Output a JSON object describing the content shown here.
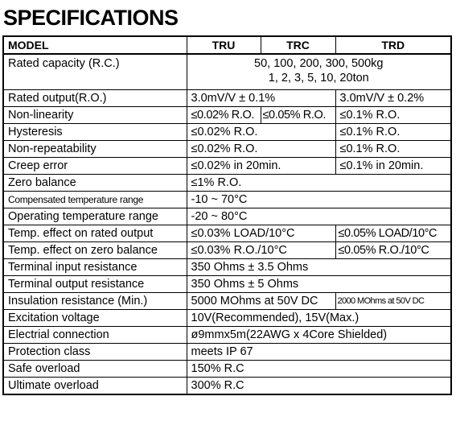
{
  "title": "SPECIFICATIONS",
  "header": {
    "model": "MODEL",
    "tru": "TRU",
    "trc": "TRC",
    "trd": "TRD"
  },
  "rows": {
    "rated_capacity": {
      "label": "Rated capacity (R.C.)",
      "line1": "50, 100, 200, 300, 500kg",
      "line2": "1, 2, 3, 5, 10, 20ton"
    },
    "rated_output": {
      "label": "Rated output(R.O.)",
      "tru_trc": "3.0mV/V ± 0.1%",
      "trd": "3.0mV/V ± 0.2%"
    },
    "non_linearity": {
      "label": "Non-linearity",
      "tru": "≤0.02% R.O.",
      "trc": "≤0.05% R.O.",
      "trd": "≤0.1% R.O."
    },
    "hysteresis": {
      "label": "Hysteresis",
      "tru_trc": "≤0.02% R.O.",
      "trd": "≤0.1% R.O."
    },
    "non_repeatability": {
      "label": "Non-repeatability",
      "tru_trc": "≤0.02% R.O.",
      "trd": "≤0.1% R.O."
    },
    "creep_error": {
      "label": "Creep error",
      "tru_trc": "≤0.02% in 20min.",
      "trd": "≤0.1% in 20min."
    },
    "zero_balance": {
      "label": "Zero balance",
      "value": "≤1% R.O."
    },
    "compensated_temp": {
      "label": "Compensated temperature range",
      "value": "-10 ~ 70°C"
    },
    "operating_temp": {
      "label": "Operating temperature range",
      "value": "-20 ~ 80°C"
    },
    "temp_effect_output": {
      "label": "Temp. effect on rated output",
      "tru_trc": "≤0.03% LOAD/10°C",
      "trd": "≤0.05% LOAD/10°C"
    },
    "temp_effect_zero": {
      "label": "Temp. effect on zero balance",
      "tru_trc": "≤0.03% R.O./10°C",
      "trd": "≤0.05% R.O./10°C"
    },
    "terminal_input": {
      "label": "Terminal input resistance",
      "value": "350 Ohms ± 3.5 Ohms"
    },
    "terminal_output": {
      "label": "Terminal output resistance",
      "value": "350 Ohms ± 5 Ohms"
    },
    "insulation": {
      "label": "Insulation resistance (Min.)",
      "tru_trc": "5000 MOhms at 50V DC",
      "trd": "2000 MOhms at 50V DC"
    },
    "excitation": {
      "label": "Excitation voltage",
      "value": "10V(Recommended), 15V(Max.)"
    },
    "electrial_connection": {
      "label": "Electrial connection",
      "value": "ø9mmx5m(22AWG x 4Core Shielded)"
    },
    "protection": {
      "label": "Protection class",
      "value": "meets IP 67"
    },
    "safe_overload": {
      "label": "Safe overload",
      "value": "150% R.C"
    },
    "ultimate_overload": {
      "label": "Ultimate overload",
      "value": "300% R.C"
    }
  }
}
